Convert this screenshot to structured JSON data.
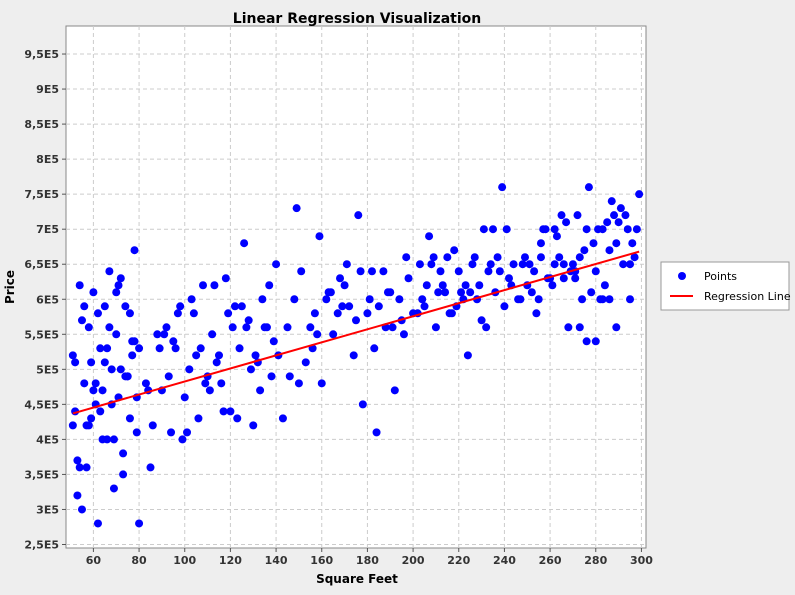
{
  "chart_data": {
    "type": "scatter",
    "title": "Linear Regression Visualization",
    "xlabel": "Square Feet",
    "ylabel": "Price",
    "xlim": [
      48,
      302
    ],
    "ylim": [
      245000,
      990000
    ],
    "x_ticks": [
      60,
      80,
      100,
      120,
      140,
      160,
      180,
      200,
      220,
      240,
      260,
      280,
      300
    ],
    "y_ticks": [
      {
        "value": 250000,
        "label": "2,5E5"
      },
      {
        "value": 300000,
        "label": "3E5"
      },
      {
        "value": 350000,
        "label": "3,5E5"
      },
      {
        "value": 400000,
        "label": "4E5"
      },
      {
        "value": 450000,
        "label": "4,5E5"
      },
      {
        "value": 500000,
        "label": "5E5"
      },
      {
        "value": 550000,
        "label": "5,5E5"
      },
      {
        "value": 600000,
        "label": "6E5"
      },
      {
        "value": 650000,
        "label": "6,5E5"
      },
      {
        "value": 700000,
        "label": "7E5"
      },
      {
        "value": 750000,
        "label": "7,5E5"
      },
      {
        "value": 800000,
        "label": "8E5"
      },
      {
        "value": 850000,
        "label": "8,5E5"
      },
      {
        "value": 900000,
        "label": "9E5"
      },
      {
        "value": 950000,
        "label": "9,5E5"
      }
    ],
    "grid": true,
    "legend_position": "right",
    "series": [
      {
        "name": "Points",
        "kind": "scatter",
        "color": "#0000ff",
        "x": [
          51,
          52,
          53,
          54,
          55,
          56,
          57,
          58,
          59,
          60,
          61,
          62,
          63,
          64,
          65,
          66,
          67,
          68,
          69,
          70,
          71,
          72,
          73,
          74,
          75,
          76,
          77,
          78,
          79,
          80,
          53,
          55,
          57,
          59,
          61,
          63,
          65,
          67,
          69,
          71,
          73,
          75,
          77,
          79,
          52,
          54,
          56,
          58,
          60,
          62,
          64,
          66,
          68,
          70,
          72,
          74,
          76,
          78,
          80,
          51,
          83,
          85,
          88,
          90,
          92,
          94,
          96,
          98,
          100,
          102,
          104,
          106,
          108,
          110,
          112,
          114,
          116,
          118,
          120,
          122,
          124,
          126,
          128,
          130,
          132,
          134,
          136,
          138,
          140,
          86,
          89,
          93,
          97,
          101,
          105,
          109,
          113,
          117,
          121,
          125,
          129,
          133,
          137,
          141,
          84,
          91,
          95,
          99,
          103,
          107,
          111,
          115,
          119,
          123,
          127,
          131,
          135,
          139,
          145,
          148,
          150,
          153,
          156,
          158,
          160,
          162,
          165,
          168,
          170,
          172,
          175,
          178,
          180,
          182,
          185,
          188,
          190,
          192,
          195,
          198,
          200,
          143,
          146,
          151,
          155,
          159,
          163,
          167,
          171,
          174,
          177,
          181,
          184,
          187,
          191,
          194,
          197,
          149,
          157,
          164,
          169,
          176,
          183,
          189,
          196,
          202,
          204,
          206,
          208,
          210,
          212,
          214,
          216,
          218,
          220,
          222,
          224,
          226,
          228,
          230,
          232,
          234,
          236,
          238,
          240,
          242,
          244,
          246,
          203,
          207,
          211,
          215,
          219,
          223,
          227,
          231,
          235,
          239,
          243,
          205,
          213,
          221,
          229,
          237,
          209,
          217,
          225,
          233,
          241,
          248,
          250,
          252,
          254,
          256,
          258,
          260,
          262,
          264,
          266,
          268,
          270,
          272,
          274,
          276,
          278,
          280,
          282,
          284,
          286,
          288,
          290,
          292,
          294,
          296,
          298,
          249,
          253,
          257,
          261,
          265,
          269,
          273,
          277,
          281,
          285,
          289,
          293,
          297,
          251,
          255,
          259,
          263,
          267,
          271,
          275,
          279,
          283,
          287,
          291,
          295,
          299,
          247,
          262,
          276,
          283,
          271,
          289,
          256,
          295,
          273,
          266,
          280,
          286
        ],
        "y": [
          520000,
          440000,
          370000,
          620000,
          570000,
          480000,
          420000,
          560000,
          510000,
          610000,
          450000,
          280000,
          530000,
          470000,
          590000,
          400000,
          640000,
          500000,
          330000,
          550000,
          460000,
          630000,
          380000,
          590000,
          490000,
          430000,
          520000,
          670000,
          410000,
          530000,
          320000,
          300000,
          360000,
          430000,
          480000,
          440000,
          510000,
          560000,
          400000,
          620000,
          350000,
          490000,
          540000,
          460000,
          510000,
          360000,
          590000,
          420000,
          470000,
          580000,
          400000,
          530000,
          450000,
          610000,
          500000,
          490000,
          580000,
          540000,
          280000,
          420000,
          480000,
          360000,
          550000,
          470000,
          560000,
          410000,
          530000,
          590000,
          460000,
          500000,
          580000,
          430000,
          620000,
          490000,
          550000,
          510000,
          480000,
          630000,
          440000,
          590000,
          530000,
          680000,
          570000,
          420000,
          510000,
          600000,
          560000,
          490000,
          650000,
          420000,
          530000,
          490000,
          580000,
          410000,
          520000,
          480000,
          620000,
          440000,
          560000,
          590000,
          500000,
          470000,
          620000,
          520000,
          470000,
          550000,
          540000,
          400000,
          600000,
          530000,
          470000,
          520000,
          580000,
          430000,
          560000,
          520000,
          560000,
          540000,
          560000,
          600000,
          480000,
          510000,
          530000,
          550000,
          480000,
          600000,
          550000,
          630000,
          620000,
          590000,
          570000,
          450000,
          580000,
          640000,
          590000,
          560000,
          610000,
          470000,
          570000,
          630000,
          580000,
          430000,
          490000,
          640000,
          560000,
          690000,
          610000,
          580000,
          650000,
          520000,
          640000,
          600000,
          410000,
          640000,
          560000,
          600000,
          660000,
          730000,
          580000,
          610000,
          590000,
          720000,
          530000,
          610000,
          550000,
          580000,
          600000,
          620000,
          650000,
          560000,
          640000,
          610000,
          580000,
          670000,
          640000,
          600000,
          520000,
          650000,
          600000,
          570000,
          560000,
          650000,
          610000,
          640000,
          590000,
          630000,
          650000,
          600000,
          650000,
          690000,
          610000,
          660000,
          590000,
          620000,
          660000,
          700000,
          700000,
          760000,
          620000,
          590000,
          620000,
          610000,
          620000,
          660000,
          660000,
          580000,
          610000,
          640000,
          700000,
          650000,
          620000,
          610000,
          580000,
          680000,
          700000,
          630000,
          650000,
          660000,
          630000,
          560000,
          650000,
          720000,
          600000,
          700000,
          610000,
          640000,
          600000,
          620000,
          670000,
          720000,
          710000,
          650000,
          700000,
          680000,
          700000,
          660000,
          640000,
          700000,
          620000,
          720000,
          640000,
          660000,
          760000,
          700000,
          710000,
          680000,
          720000,
          660000,
          650000,
          600000,
          630000,
          690000,
          710000,
          640000,
          670000,
          680000,
          700000,
          740000,
          730000,
          650000,
          750000,
          600000,
          700000,
          540000,
          600000,
          630000,
          560000,
          660000,
          600000,
          560000,
          650000,
          540000,
          600000
        ]
      },
      {
        "name": "Regression Line",
        "kind": "line",
        "color": "#ff0000",
        "x": [
          51,
          299
        ],
        "y": [
          437000,
          668000
        ]
      }
    ]
  }
}
